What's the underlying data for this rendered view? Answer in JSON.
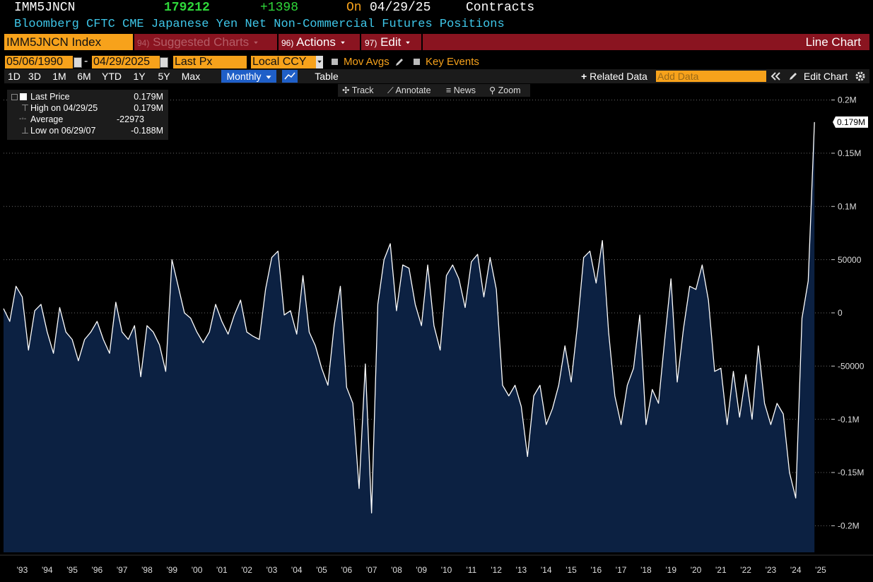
{
  "header": {
    "ticker": "IMM5JNCN",
    "last": "179212",
    "change": "+1398",
    "on": "On",
    "date": "04/29/25",
    "unit": "Contracts",
    "description": "Bloomberg CFTC CME Japanese Yen Net Non-Commercial Futures Positions"
  },
  "toolbar": {
    "security": "IMM5JNCN Index",
    "menus": [
      {
        "num": "94)",
        "label": "Suggested Charts"
      },
      {
        "num": "96)",
        "label": "Actions"
      },
      {
        "num": "97)",
        "label": "Edit"
      }
    ],
    "view": "Line Chart"
  },
  "controls": {
    "start": "05/06/1990",
    "separator": "-",
    "end": "04/29/2025",
    "field": "Last Px",
    "currency": "Local CCY",
    "mov_avgs": "Mov Avgs",
    "key_events": "Key Events"
  },
  "periods": [
    "1D",
    "3D",
    "1M",
    "6M",
    "YTD",
    "1Y",
    "5Y",
    "Max"
  ],
  "frequency": "Monthly",
  "table": "Table",
  "related": "Related Data",
  "add_data": "Add Data",
  "edit_chart": "Edit Chart",
  "chart_tools": [
    "Track",
    "Annotate",
    "News",
    "Zoom"
  ],
  "legend_stats": [
    {
      "label": "High on 04/29/25",
      "value": "0.179M"
    },
    {
      "label": "Average",
      "value": "-22973"
    },
    {
      "label": "Low on 06/29/07",
      "value": "-0.188M"
    }
  ],
  "chart_data": {
    "type": "area",
    "grid": true,
    "categories": [
      null,
      null,
      null,
      "'93",
      null,
      null,
      null,
      "'94",
      null,
      null,
      null,
      "'95",
      null,
      null,
      null,
      "'96",
      null,
      null,
      null,
      "'97",
      null,
      null,
      null,
      "'98",
      null,
      null,
      null,
      "'99",
      null,
      null,
      null,
      "'00",
      null,
      null,
      null,
      "'01",
      null,
      null,
      null,
      "'02",
      null,
      null,
      null,
      "'03",
      null,
      null,
      null,
      "'04",
      null,
      null,
      null,
      "'05",
      null,
      null,
      null,
      "'06",
      null,
      null,
      null,
      "'07",
      null,
      null,
      null,
      "'08",
      null,
      null,
      null,
      "'09",
      null,
      null,
      null,
      "'10",
      null,
      null,
      null,
      "'11",
      null,
      null,
      null,
      "'12",
      null,
      null,
      null,
      "'13",
      null,
      null,
      null,
      "'14",
      null,
      null,
      null,
      "'15",
      null,
      null,
      null,
      "'16",
      null,
      null,
      null,
      "'17",
      null,
      null,
      null,
      "'18",
      null,
      null,
      null,
      "'19",
      null,
      null,
      null,
      "'20",
      null,
      null,
      null,
      "'21",
      null,
      null,
      null,
      "'22",
      null,
      null,
      null,
      "'23",
      null,
      null,
      null,
      "'24",
      null,
      null,
      null,
      "'25"
    ],
    "series": [
      {
        "name": "Last Price",
        "color": "#ffffff",
        "fill": "#0c2142",
        "values": [
          4000,
          -8000,
          25000,
          15000,
          -35000,
          2000,
          8000,
          -18000,
          -38000,
          5000,
          -18000,
          -25000,
          -45000,
          -25000,
          -18000,
          -8000,
          -25000,
          -38000,
          10000,
          -18000,
          -25000,
          -12000,
          -60000,
          -12000,
          -18000,
          -30000,
          -55000,
          50000,
          25000,
          0,
          -5000,
          -18000,
          -28000,
          -18000,
          8000,
          -8000,
          -20000,
          -2000,
          12000,
          -18000,
          -22000,
          -25000,
          22000,
          52000,
          58000,
          -2000,
          2000,
          -20000,
          35000,
          -18000,
          -31000,
          -52000,
          -68000,
          -12000,
          25000,
          -70000,
          -85000,
          -165000,
          -48000,
          -188000,
          8000,
          50000,
          65000,
          2000,
          45000,
          42000,
          8000,
          -12000,
          45000,
          -12000,
          -35000,
          35000,
          45000,
          32000,
          5000,
          48000,
          55000,
          15000,
          52000,
          22000,
          -68000,
          -78000,
          -68000,
          -88000,
          -135000,
          -78000,
          -68000,
          -105000,
          -90000,
          -68000,
          -31000,
          -65000,
          -12000,
          52000,
          58000,
          28000,
          68000,
          -18000,
          -78000,
          -105000,
          -68000,
          -52000,
          -2000,
          -105000,
          -72000,
          -85000,
          -25000,
          32000,
          -65000,
          -15000,
          25000,
          22000,
          45000,
          12000,
          -55000,
          -52000,
          -105000,
          -55000,
          -98000,
          -58000,
          -100000,
          -31000,
          -85000,
          -105000,
          -85000,
          -95000,
          -150000,
          -174000,
          -5000,
          30000,
          179212,
          null
        ],
        "value_labels": [
          null,
          null,
          null,
          null,
          null,
          null,
          null,
          null,
          null,
          null,
          null,
          null,
          null,
          null,
          null,
          null,
          null,
          null,
          null,
          null,
          null,
          null,
          null,
          null,
          null,
          null,
          null,
          null,
          null,
          null,
          null,
          null,
          null,
          null,
          null,
          null,
          null,
          null,
          null,
          null,
          null,
          null,
          null,
          null,
          null,
          null,
          null,
          null,
          null,
          null,
          null,
          null,
          null,
          null,
          null,
          null,
          null,
          null,
          null,
          null,
          null,
          null,
          null,
          null,
          null,
          null,
          null,
          null,
          null,
          null,
          null,
          null,
          null,
          null,
          null,
          null,
          null,
          null,
          null,
          null,
          null,
          null,
          null,
          null,
          null,
          null,
          null,
          null,
          null,
          null,
          null,
          null,
          null,
          null,
          null,
          null,
          null,
          null,
          null,
          null,
          null,
          null,
          null,
          null,
          null,
          null,
          null,
          null,
          null,
          null,
          null,
          null,
          null,
          null,
          null,
          null,
          null,
          null,
          null,
          null,
          null,
          null,
          null,
          null,
          null,
          null,
          null,
          null,
          null,
          null,
          "0.179M",
          null
        ]
      }
    ],
    "ylim": [
      -225000,
      211000
    ],
    "yticks": [
      {
        "value": 200000,
        "label": "0.2M"
      },
      {
        "value": 150000,
        "label": "0.15M"
      },
      {
        "value": 100000,
        "label": "0.1M"
      },
      50000,
      0,
      -50000,
      {
        "value": -100000,
        "label": "-0.1M"
      },
      {
        "value": -150000,
        "label": "-0.15M"
      },
      {
        "value": -200000,
        "label": "-0.2M"
      }
    ]
  }
}
